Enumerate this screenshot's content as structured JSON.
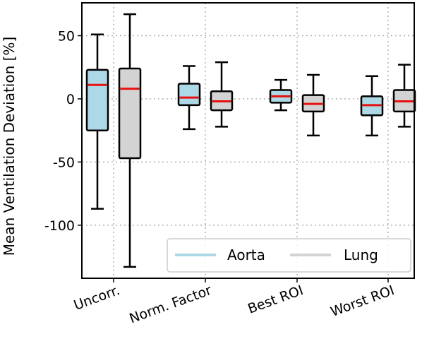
{
  "chart_data": {
    "type": "box",
    "title": "",
    "xlabel": "",
    "ylabel": "Mean Ventilation Deviation [%]",
    "ylim": [
      -142,
      76
    ],
    "yticks": [
      50,
      0,
      -50,
      -100
    ],
    "ytick_labels": [
      "50",
      "0",
      "-50",
      "-100"
    ],
    "grid": true,
    "legend_position": "lower right",
    "categories": [
      "Uncorr.",
      "Norm. Factor",
      "Best ROI",
      "Worst ROI"
    ],
    "series": [
      {
        "name": "Aorta",
        "color": "#add8e6",
        "boxes": [
          {
            "whisker_low": -87,
            "q1": -25,
            "median": 11,
            "q3": 23,
            "whisker_high": 51
          },
          {
            "whisker_low": -24,
            "q1": -5,
            "median": 1,
            "q3": 12,
            "whisker_high": 26
          },
          {
            "whisker_low": -9,
            "q1": -3,
            "median": 2,
            "q3": 7,
            "whisker_high": 15
          },
          {
            "whisker_low": -29,
            "q1": -13,
            "median": -5,
            "q3": 2,
            "whisker_high": 18
          }
        ]
      },
      {
        "name": "Lung",
        "color": "#d3d3d3",
        "boxes": [
          {
            "whisker_low": -133,
            "q1": -47,
            "median": 8,
            "q3": 24,
            "whisker_high": 67
          },
          {
            "whisker_low": -22,
            "q1": -9,
            "median": -2,
            "q3": 6,
            "whisker_high": 29
          },
          {
            "whisker_low": -29,
            "q1": -10,
            "median": -4,
            "q3": 3,
            "whisker_high": 19
          },
          {
            "whisker_low": -22,
            "q1": -10,
            "median": -2,
            "q3": 7,
            "whisker_high": 27
          }
        ]
      }
    ],
    "median_color": "#e8100f"
  }
}
